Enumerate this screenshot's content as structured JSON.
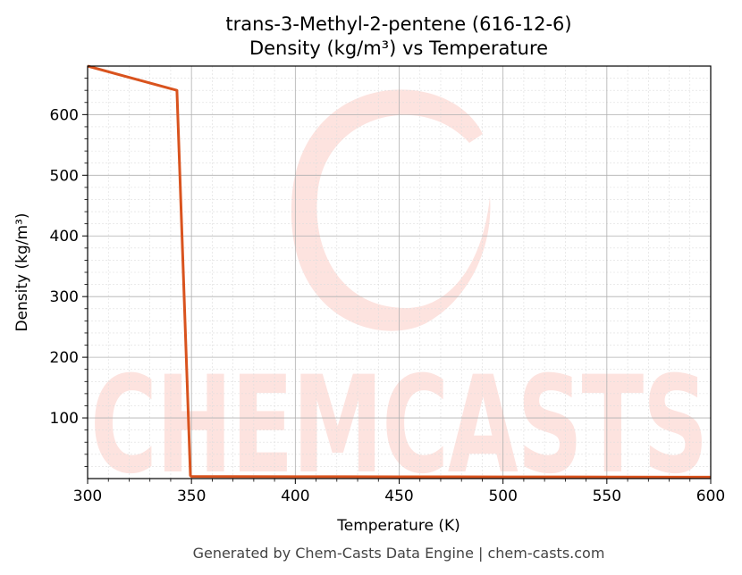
{
  "chart_data": {
    "type": "line",
    "title": "trans-3-Methyl-2-pentene (616-12-6)",
    "subtitle": "Density (kg/m³) vs Temperature",
    "xlabel": "Temperature (K)",
    "ylabel": "Density (kg/m³)",
    "xlim": [
      300,
      600
    ],
    "ylim": [
      0,
      680
    ],
    "x_ticks": [
      300,
      350,
      400,
      450,
      500,
      550,
      600
    ],
    "y_ticks": [
      100,
      200,
      300,
      400,
      500,
      600
    ],
    "grid": true,
    "series": [
      {
        "color": "#d9531e",
        "x": [
          300,
          343,
          349.5,
          350,
          400,
          450,
          500,
          550,
          600
        ],
        "y": [
          680,
          640,
          5,
          3.5,
          3.2,
          3.0,
          2.8,
          2.6,
          2.4
        ]
      }
    ]
  },
  "watermark": {
    "text": "CHEMCASTS",
    "color": "#fde3df"
  },
  "footer": "Generated by Chem-Casts Data Engine | chem-casts.com"
}
